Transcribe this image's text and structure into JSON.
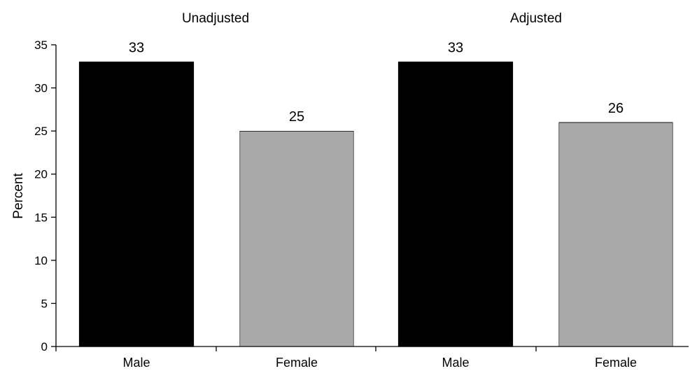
{
  "chart_data": {
    "type": "bar",
    "ylabel": "Percent",
    "ylim": [
      0,
      35
    ],
    "y_ticks": [
      0,
      5,
      10,
      15,
      20,
      25,
      30,
      35
    ],
    "grid": false,
    "groups": [
      {
        "title": "Unadjusted",
        "categories": [
          "Male",
          "Female"
        ],
        "values": [
          33,
          25
        ],
        "value_labels": [
          "33",
          "25"
        ]
      },
      {
        "title": "Adjusted",
        "categories": [
          "Male",
          "Female"
        ],
        "values": [
          33,
          26
        ],
        "value_labels": [
          "33",
          "26"
        ]
      }
    ],
    "colors": {
      "Male": "#000000",
      "Female": "#a9a9a9"
    }
  }
}
